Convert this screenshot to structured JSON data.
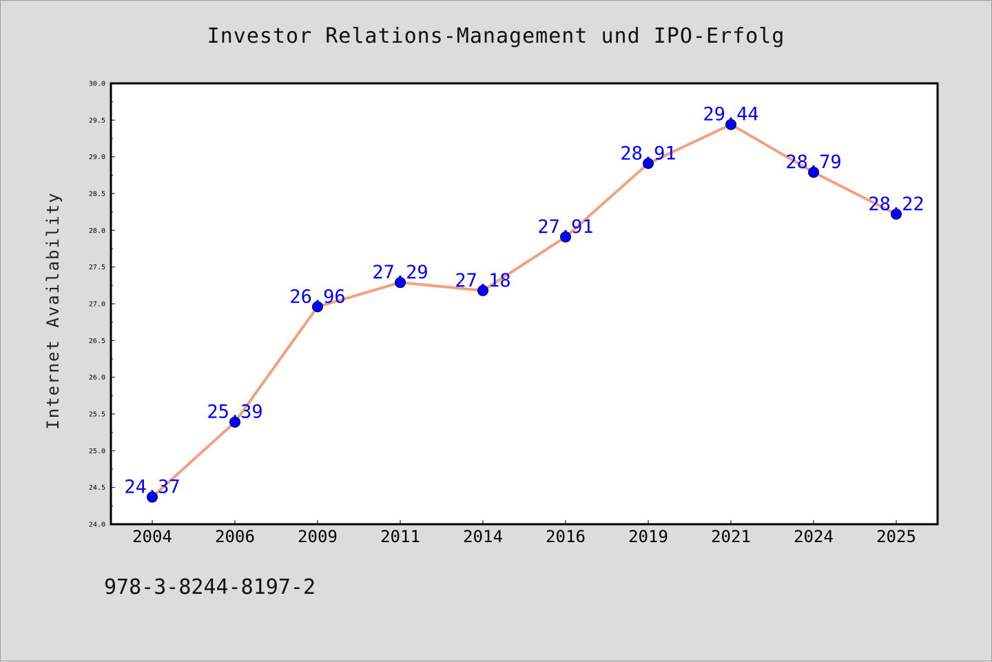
{
  "chart_data": {
    "type": "line",
    "title": "Investor Relations-Management und IPO-Erfolg",
    "xlabel": "",
    "ylabel": "Internet Availability",
    "categories": [
      "2004",
      "2006",
      "2009",
      "2011",
      "2014",
      "2016",
      "2019",
      "2021",
      "2024",
      "2025"
    ],
    "series": [
      {
        "values": [
          24.37,
          25.39,
          26.96,
          27.29,
          27.18,
          27.91,
          28.91,
          29.44,
          28.79,
          28.22
        ],
        "line_color": "#f4a07f",
        "marker_color": "#0000ff"
      }
    ],
    "data_labels": [
      "24.37",
      "25.39",
      "26.96",
      "27.29",
      "27.18",
      "27.91",
      "28.91",
      "29.44",
      "28.79",
      "28.22"
    ],
    "ylim": [
      24.0,
      30.0
    ],
    "yticks": [
      "24.0",
      "24.5",
      "25.0",
      "25.5",
      "26.0",
      "26.5",
      "27.0",
      "27.5",
      "28.0",
      "28.5",
      "29.0",
      "29.5",
      "30.0"
    ],
    "grid": false,
    "legend": "none"
  },
  "footer": {
    "isbn": "978-3-8244-8197-2"
  },
  "colors": {
    "background": "#dcdcdc",
    "plot_area": "#ffffff",
    "line": "#f4a07f",
    "marker": "#0000ff",
    "label": "#0000ff"
  }
}
